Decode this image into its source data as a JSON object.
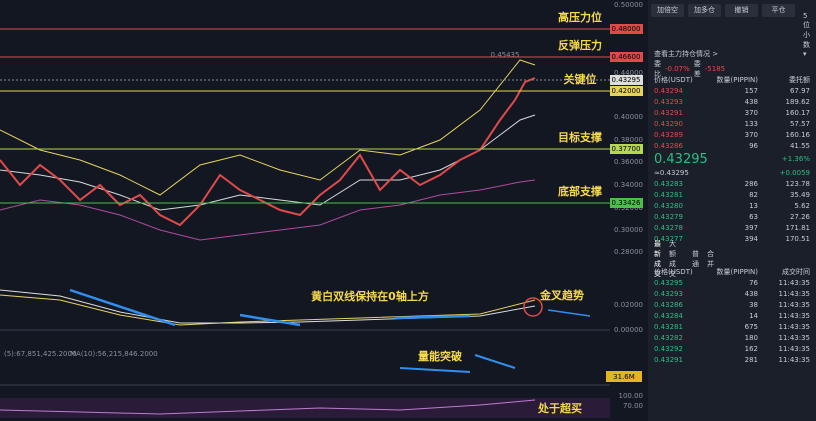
{
  "price_axis": [
    "0.50000",
    "0.44000",
    "0.40000",
    "0.38000",
    "0.36000",
    "0.34000",
    "0.32000",
    "0.30000",
    "0.28000"
  ],
  "levels": [
    {
      "name": "高压力位",
      "price": "0.48000"
    },
    {
      "name": "反弹压力",
      "price": "0.46600"
    },
    {
      "name": "关键位",
      "price": "0.42000"
    },
    {
      "name": "目标支撑",
      "price": "0.37700"
    },
    {
      "name": "底部支撑",
      "price": "0.33426"
    }
  ],
  "current_price_tag": "0.43295",
  "peak_label": "0.45435",
  "macd": {
    "note": "黄白双线保持在0轴上方",
    "cross": "金叉趋势",
    "axis": [
      "0.02000",
      "0.00000"
    ]
  },
  "volume": {
    "header": "(5):67,851,425.2000",
    "ma": "MA(10):56,215,846.2000",
    "note": "量能突破",
    "tag": "31.6M"
  },
  "rsi": {
    "note": "处于超买",
    "axis": [
      "100.00",
      "70.00"
    ]
  },
  "panel": {
    "buttons": [
      "加倍空",
      "加多仓",
      "撤销",
      "平仓"
    ],
    "decimals": "5位小数 ▾",
    "main_position": "查看主力持仓情况 >",
    "ratio_label": "委比",
    "ratio": "-0.07%",
    "diff_label": "委差",
    "diff": "-5185",
    "book_headers": [
      "价格(USDT)",
      "数量(PIPPIN)",
      "委托额"
    ],
    "asks": [
      [
        "0.43294",
        "157",
        "67.97"
      ],
      [
        "0.43293",
        "438",
        "189.62"
      ],
      [
        "0.43291",
        "370",
        "160.17"
      ],
      [
        "0.43290",
        "133",
        "57.57"
      ],
      [
        "0.43289",
        "370",
        "160.16"
      ],
      [
        "0.43286",
        "96",
        "41.55"
      ]
    ],
    "last_price": "0.43295",
    "last_sub": "≈0.43295",
    "change_pct": "+1.36%",
    "change_abs": "+0.0059",
    "bids": [
      [
        "0.43283",
        "286",
        "123.78"
      ],
      [
        "0.43281",
        "82",
        "35.49"
      ],
      [
        "0.43280",
        "13",
        "5.62"
      ],
      [
        "0.43279",
        "63",
        "27.26"
      ],
      [
        "0.43278",
        "397",
        "171.81"
      ],
      [
        "0.43277",
        "394",
        "170.51"
      ]
    ],
    "tabs": [
      "最新成交",
      "大额成交"
    ],
    "toggles": [
      "普通",
      "合并"
    ],
    "trade_headers": [
      "价格(USDT)",
      "数量(PIPPIN)",
      "成交时间"
    ],
    "trades": [
      [
        "0.43295",
        "76",
        "11:43:35"
      ],
      [
        "0.43293",
        "438",
        "11:43:35"
      ],
      [
        "0.43286",
        "38",
        "11:43:35"
      ],
      [
        "0.43284",
        "14",
        "11:43:35"
      ],
      [
        "0.43281",
        "675",
        "11:43:35"
      ],
      [
        "0.43282",
        "180",
        "11:43:35"
      ],
      [
        "0.43292",
        "162",
        "11:43:35"
      ],
      [
        "0.43291",
        "281",
        "11:43:35"
      ]
    ]
  }
}
